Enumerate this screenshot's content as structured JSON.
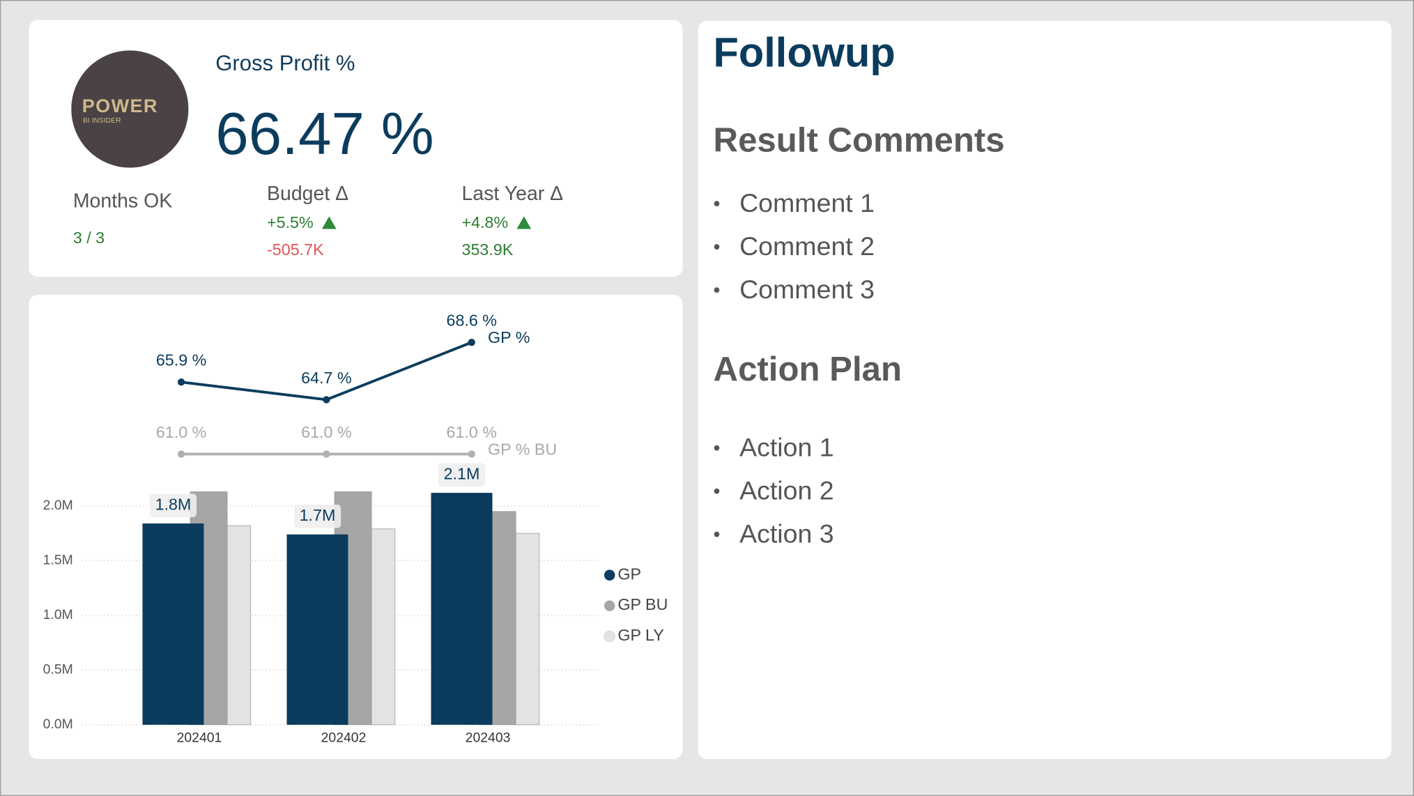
{
  "logo": {
    "title": "POWER",
    "subtitle": "BI INSIDER"
  },
  "kpi": {
    "title": "Gross Profit %",
    "value": "66.47 %",
    "months_ok": {
      "label": "Months OK",
      "value": "3 / 3"
    },
    "budget_delta": {
      "label": "Budget Δ",
      "percent": "+5.5%",
      "amount": "-505.7K"
    },
    "last_year_delta": {
      "label": "Last Year Δ",
      "percent": "+4.8%",
      "amount": "353.9K"
    }
  },
  "followup": {
    "title": "Followup",
    "result_comments": {
      "heading": "Result Comments",
      "items": [
        "Comment 1",
        "Comment 2",
        "Comment 3"
      ]
    },
    "action_plan": {
      "heading": "Action Plan",
      "items": [
        "Action 1",
        "Action 2",
        "Action 3"
      ]
    }
  },
  "chart_data": [
    {
      "type": "bar",
      "categories": [
        "202401",
        "202402",
        "202403"
      ],
      "series": [
        {
          "name": "GP",
          "color": "#0b3c5d",
          "values": [
            1840000,
            1740000,
            2120000
          ],
          "value_labels": [
            "1.8M",
            "1.7M",
            "2.1M"
          ]
        },
        {
          "name": "GP BU",
          "color": "#a6a6a6",
          "values": [
            2130000,
            2130000,
            1950000
          ]
        },
        {
          "name": "GP LY",
          "color": "#e3e3e3",
          "values": [
            1820000,
            1790000,
            1750000
          ]
        }
      ],
      "ylim": [
        0,
        2200000
      ],
      "yticks": [
        {
          "value": 0,
          "label": "0.0M"
        },
        {
          "value": 500000,
          "label": "0.5M"
        },
        {
          "value": 1000000,
          "label": "1.0M"
        },
        {
          "value": 1500000,
          "label": "1.5M"
        },
        {
          "value": 2000000,
          "label": "2.0M"
        }
      ],
      "grid": true,
      "legend": "right"
    },
    {
      "type": "line",
      "series": [
        {
          "name": "GP %",
          "color": "#0b3c5d",
          "values": [
            65.9,
            64.7,
            68.6
          ],
          "value_labels": [
            "65.9 %",
            "64.7 %",
            "68.6 %"
          ]
        },
        {
          "name": "GP % BU",
          "color": "#b0b0b0",
          "values": [
            61.0,
            61.0,
            61.0
          ],
          "value_labels": [
            "61.0 %",
            "61.0 %",
            "61.0 %"
          ]
        }
      ],
      "ylim": [
        60,
        70
      ]
    }
  ]
}
